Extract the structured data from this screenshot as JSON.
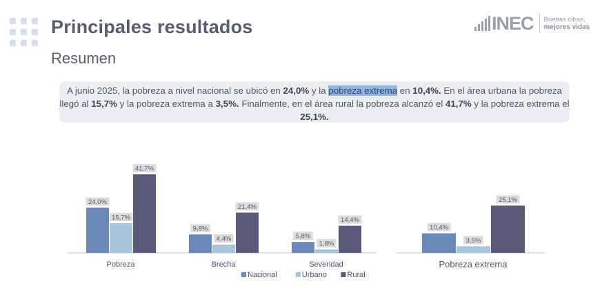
{
  "header": {
    "title": "Principales resultados",
    "subtitle": "Resumen"
  },
  "logo": {
    "mark": "INEC",
    "tagline_1": "Buenas cifras,",
    "tagline_2": "mejores vidas"
  },
  "summary": {
    "p1": "A junio 2025, la pobreza a nivel nacional se ubicó en ",
    "v1": "24,0%",
    "p2": " y la ",
    "highlight": "pobreza extrema",
    "p3": " en ",
    "v2": "10,4%.",
    "p4": " En el área urbana la pobreza llegó al ",
    "v3": "15,7%",
    "p5": " y la pobreza extrema a ",
    "v4": "3,5%.",
    "p6": " Finalmente, en el área rural la pobreza alcanzó el ",
    "v5": "41,7%",
    "p7": " y la pobreza extrema el  ",
    "v6": "25,1%."
  },
  "colors": {
    "nacional": "#6b89b7",
    "urbano": "#a9c4da",
    "rural": "#5c5a7a",
    "label_bg": "#dcdcdc",
    "axis": "#bcbcbc"
  },
  "chart_data": [
    {
      "type": "bar",
      "categories": [
        "Pobreza",
        "Brecha",
        "Severidad"
      ],
      "series": [
        {
          "name": "Nacional",
          "values": [
            24.0,
            9.8,
            5.8
          ],
          "labels": [
            "24,0%",
            "9,8%",
            "5,8%"
          ]
        },
        {
          "name": "Urbano",
          "values": [
            15.7,
            4.4,
            1.8
          ],
          "labels": [
            "15,7%",
            "4,4%",
            "1,8%"
          ]
        },
        {
          "name": "Rural",
          "values": [
            41.7,
            21.4,
            14.4
          ],
          "labels": [
            "41,7%",
            "21,4%",
            "14,4%"
          ]
        }
      ],
      "ylim": [
        0,
        45
      ],
      "legend": [
        "Nacional",
        "Urbano",
        "Rural"
      ],
      "legend_position": "bottom"
    },
    {
      "type": "bar",
      "categories": [
        "Pobreza extrema"
      ],
      "series": [
        {
          "name": "Nacional",
          "values": [
            10.4
          ],
          "labels": [
            "10,4%"
          ]
        },
        {
          "name": "Urbano",
          "values": [
            3.5
          ],
          "labels": [
            "3,5%"
          ]
        },
        {
          "name": "Rural",
          "values": [
            25.1
          ],
          "labels": [
            "25,1%"
          ]
        }
      ],
      "ylim": [
        0,
        45
      ]
    }
  ]
}
